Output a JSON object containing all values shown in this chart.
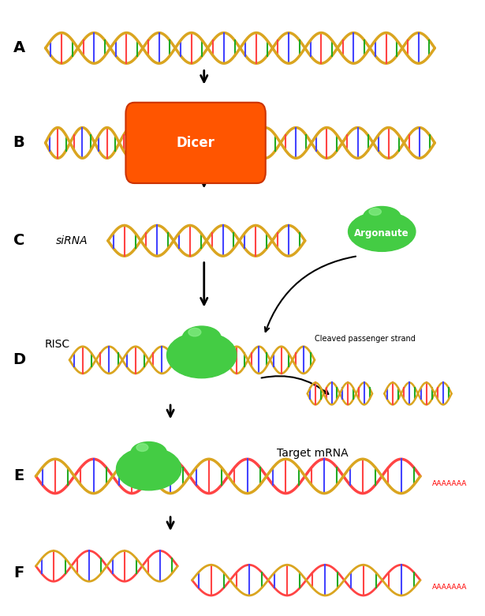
{
  "background_color": "#ffffff",
  "dna_gold": "#DAA520",
  "dna_red": "#FF4444",
  "dna_blue": "#4444FF",
  "dna_green": "#22AA22",
  "dicer_color": "#FF5500",
  "argonaute_color": "#44CC44",
  "risc_color": "#44CC44",
  "label_fontsize": 14,
  "text_fontsize": 10,
  "small_text_fontsize": 8,
  "dicer_label": "Dicer",
  "argonaute_label": "Argonaute",
  "cleaved_label": "Cleaved passenger strand",
  "target_mrna_label": "Target mRNA"
}
